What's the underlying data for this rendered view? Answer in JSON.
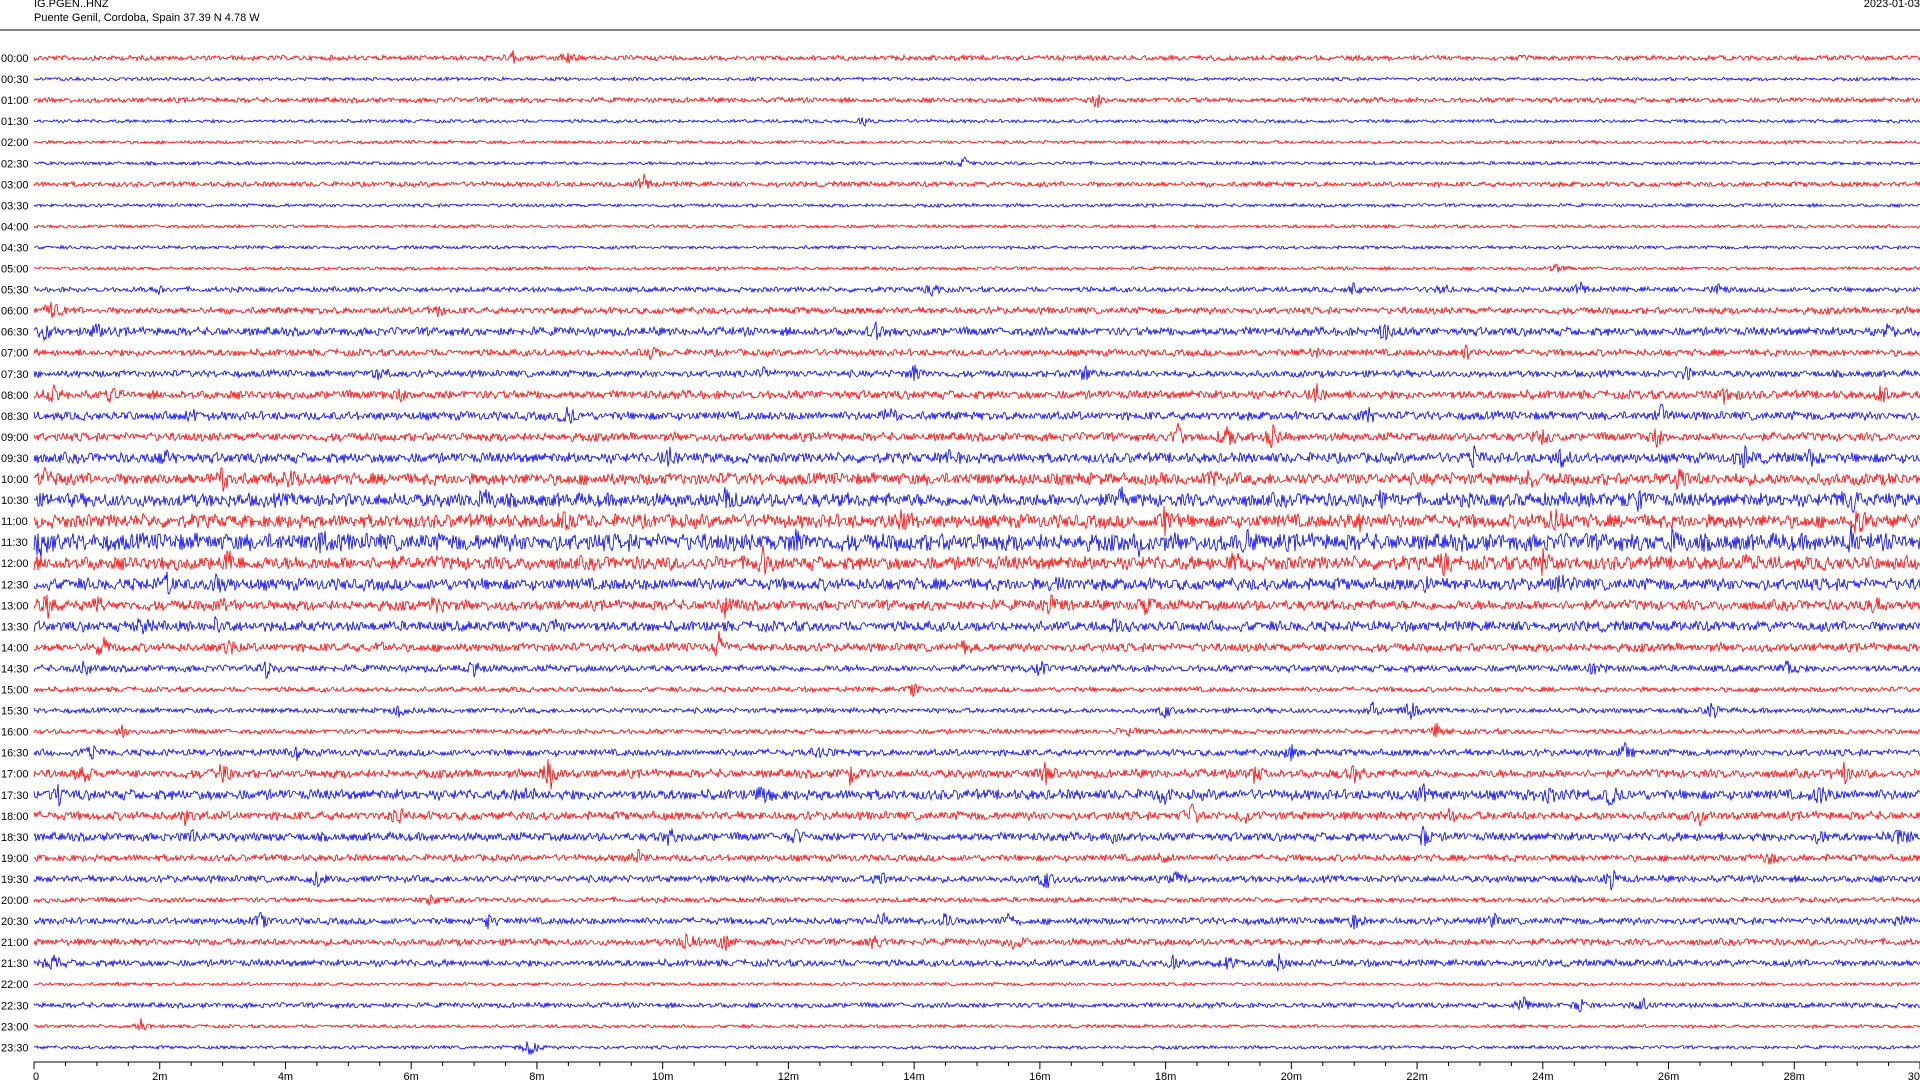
{
  "header": {
    "station": "IG.PGEN..HNZ",
    "location": "Puente Genil, Cordoba, Spain  37.39 N 4.78 W",
    "date": "2023-01-03"
  },
  "colors": {
    "even_row": "#ff0000",
    "odd_row": "#0000ff",
    "axis": "#000000"
  },
  "chart_data": {
    "type": "line",
    "title": "",
    "xlabel": "",
    "ylabel": "",
    "x_unit": "minutes",
    "xlim": [
      0,
      30
    ],
    "x_ticks": [
      "0",
      "2m",
      "4m",
      "6m",
      "8m",
      "10m",
      "12m",
      "14m",
      "16m",
      "18m",
      "20m",
      "22m",
      "24m",
      "26m",
      "28m",
      "30"
    ],
    "minor_ticks_per_minute": 2,
    "rows": [
      {
        "label": "00:00",
        "amp": 3,
        "events": [
          [
            7.6,
            10
          ],
          [
            8.5,
            8
          ]
        ]
      },
      {
        "label": "00:30",
        "amp": 2,
        "events": []
      },
      {
        "label": "01:00",
        "amp": 3,
        "events": [
          [
            16.9,
            9
          ]
        ]
      },
      {
        "label": "01:30",
        "amp": 2,
        "events": [
          [
            13.2,
            5
          ]
        ]
      },
      {
        "label": "02:00",
        "amp": 2,
        "events": []
      },
      {
        "label": "02:30",
        "amp": 2,
        "events": [
          [
            14.8,
            6
          ]
        ]
      },
      {
        "label": "03:00",
        "amp": 3,
        "events": [
          [
            9.7,
            12
          ]
        ]
      },
      {
        "label": "03:30",
        "amp": 2,
        "events": []
      },
      {
        "label": "04:00",
        "amp": 2,
        "events": []
      },
      {
        "label": "04:30",
        "amp": 2,
        "events": []
      },
      {
        "label": "05:00",
        "amp": 2,
        "events": [
          [
            24.2,
            6
          ]
        ]
      },
      {
        "label": "05:30",
        "amp": 3,
        "events": [
          [
            2.0,
            6
          ],
          [
            14.3,
            7
          ],
          [
            21.0,
            7
          ],
          [
            22.4,
            7
          ],
          [
            24.6,
            9
          ],
          [
            26.8,
            8
          ]
        ]
      },
      {
        "label": "06:00",
        "amp": 4,
        "events": [
          [
            0.3,
            12
          ],
          [
            6.4,
            8
          ]
        ]
      },
      {
        "label": "06:30",
        "amp": 5,
        "events": [
          [
            0.2,
            10
          ],
          [
            1.0,
            9
          ],
          [
            13.4,
            10
          ],
          [
            21.5,
            9
          ],
          [
            29.5,
            9
          ]
        ]
      },
      {
        "label": "07:00",
        "amp": 4,
        "events": [
          [
            9.8,
            8
          ],
          [
            20.4,
            7
          ],
          [
            22.8,
            9
          ]
        ]
      },
      {
        "label": "07:30",
        "amp": 4,
        "events": [
          [
            5.5,
            10
          ],
          [
            11.6,
            9
          ],
          [
            14.0,
            10
          ],
          [
            16.7,
            11
          ],
          [
            26.3,
            8
          ]
        ]
      },
      {
        "label": "08:00",
        "amp": 5,
        "events": [
          [
            0.3,
            9
          ],
          [
            1.2,
            8
          ],
          [
            5.8,
            7
          ],
          [
            20.4,
            10
          ],
          [
            26.9,
            10
          ],
          [
            29.4,
            9
          ]
        ]
      },
      {
        "label": "08:30",
        "amp": 5,
        "events": [
          [
            2.5,
            9
          ],
          [
            8.5,
            12
          ],
          [
            13.6,
            10
          ],
          [
            21.2,
            9
          ],
          [
            25.9,
            12
          ]
        ]
      },
      {
        "label": "09:00",
        "amp": 5,
        "events": [
          [
            18.2,
            14
          ],
          [
            19.0,
            16
          ],
          [
            19.7,
            11
          ],
          [
            24.0,
            9
          ],
          [
            25.8,
            12
          ]
        ]
      },
      {
        "label": "09:30",
        "amp": 6,
        "events": [
          [
            2.1,
            9
          ],
          [
            10.1,
            10
          ],
          [
            14.5,
            8
          ],
          [
            22.9,
            10
          ],
          [
            24.3,
            9
          ],
          [
            27.2,
            13
          ],
          [
            28.3,
            12
          ]
        ]
      },
      {
        "label": "10:00",
        "amp": 7,
        "events": [
          [
            0.2,
            12
          ],
          [
            3.0,
            12
          ],
          [
            4.1,
            10
          ],
          [
            18.7,
            11
          ],
          [
            23.8,
            10
          ],
          [
            26.2,
            12
          ]
        ]
      },
      {
        "label": "10:30",
        "amp": 8,
        "events": [
          [
            7.2,
            11
          ],
          [
            11.0,
            10
          ],
          [
            17.3,
            12
          ],
          [
            21.4,
            11
          ],
          [
            25.5,
            10
          ],
          [
            28.9,
            11
          ]
        ]
      },
      {
        "label": "11:00",
        "amp": 8,
        "events": [
          [
            8.5,
            11
          ],
          [
            13.8,
            12
          ],
          [
            18.0,
            13
          ],
          [
            21.1,
            12
          ],
          [
            24.2,
            14
          ],
          [
            29.0,
            12
          ]
        ]
      },
      {
        "label": "11:30",
        "amp": 10,
        "events": [
          [
            0.1,
            12
          ],
          [
            4.6,
            11
          ],
          [
            12.1,
            10
          ],
          [
            17.6,
            12
          ],
          [
            19.3,
            11
          ],
          [
            26.1,
            11
          ],
          [
            28.9,
            11
          ]
        ]
      },
      {
        "label": "12:00",
        "amp": 8,
        "events": [
          [
            3.1,
            13
          ],
          [
            11.6,
            14
          ],
          [
            19.1,
            10
          ],
          [
            22.4,
            10
          ],
          [
            24.0,
            14
          ],
          [
            27.2,
            9
          ]
        ]
      },
      {
        "label": "12:30",
        "amp": 7,
        "events": [
          [
            2.1,
            12
          ],
          [
            2.9,
            9
          ],
          [
            16.3,
            10
          ],
          [
            22.1,
            9
          ],
          [
            24.3,
            8
          ]
        ]
      },
      {
        "label": "13:00",
        "amp": 6,
        "events": [
          [
            0.2,
            12
          ],
          [
            1.0,
            10
          ],
          [
            3.0,
            10
          ],
          [
            6.4,
            10
          ],
          [
            11.0,
            14
          ],
          [
            16.2,
            11
          ],
          [
            17.7,
            10
          ],
          [
            29.3,
            9
          ]
        ]
      },
      {
        "label": "13:30",
        "amp": 6,
        "events": [
          [
            1.7,
            9
          ],
          [
            2.9,
            8
          ],
          [
            8.3,
            8
          ],
          [
            17.2,
            8
          ]
        ]
      },
      {
        "label": "14:00",
        "amp": 5,
        "events": [
          [
            1.1,
            12
          ],
          [
            3.1,
            9
          ],
          [
            5.5,
            9
          ],
          [
            10.9,
            14
          ],
          [
            14.8,
            7
          ]
        ]
      },
      {
        "label": "14:30",
        "amp": 4,
        "events": [
          [
            0.8,
            11
          ],
          [
            3.7,
            10
          ],
          [
            7.0,
            8
          ],
          [
            16.0,
            8
          ],
          [
            24.8,
            8
          ],
          [
            27.9,
            9
          ]
        ]
      },
      {
        "label": "15:00",
        "amp": 3,
        "events": [
          [
            14.0,
            7
          ]
        ]
      },
      {
        "label": "15:30",
        "amp": 3,
        "events": [
          [
            5.8,
            9
          ],
          [
            18.0,
            9
          ],
          [
            21.3,
            10
          ],
          [
            21.9,
            12
          ],
          [
            26.7,
            10
          ]
        ]
      },
      {
        "label": "16:00",
        "amp": 3,
        "events": [
          [
            1.4,
            8
          ],
          [
            17.4,
            8
          ],
          [
            22.3,
            9
          ]
        ]
      },
      {
        "label": "16:30",
        "amp": 4,
        "events": [
          [
            0.9,
            9
          ],
          [
            4.2,
            8
          ],
          [
            12.5,
            8
          ],
          [
            20.0,
            9
          ],
          [
            25.3,
            8
          ]
        ]
      },
      {
        "label": "17:00",
        "amp": 5,
        "events": [
          [
            0.8,
            9
          ],
          [
            3.0,
            11
          ],
          [
            8.2,
            18
          ],
          [
            13.0,
            14
          ],
          [
            16.1,
            10
          ],
          [
            19.4,
            11
          ],
          [
            21.0,
            11
          ],
          [
            28.8,
            10
          ]
        ]
      },
      {
        "label": "17:30",
        "amp": 6,
        "events": [
          [
            0.4,
            11
          ],
          [
            7.8,
            12
          ],
          [
            11.6,
            9
          ],
          [
            18.0,
            11
          ],
          [
            22.1,
            10
          ],
          [
            24.1,
            12
          ],
          [
            25.1,
            13
          ],
          [
            28.4,
            11
          ]
        ]
      },
      {
        "label": "18:00",
        "amp": 5,
        "events": [
          [
            2.4,
            9
          ],
          [
            5.8,
            8
          ],
          [
            18.4,
            16
          ],
          [
            19.3,
            9
          ],
          [
            22.5,
            10
          ],
          [
            26.5,
            8
          ]
        ]
      },
      {
        "label": "18:30",
        "amp": 5,
        "events": [
          [
            2.5,
            10
          ],
          [
            10.1,
            10
          ],
          [
            12.1,
            10
          ],
          [
            17.2,
            8
          ],
          [
            22.1,
            12
          ],
          [
            28.4,
            9
          ],
          [
            29.7,
            12
          ]
        ]
      },
      {
        "label": "19:00",
        "amp": 4,
        "events": [
          [
            9.6,
            9
          ],
          [
            17.9,
            10
          ],
          [
            27.6,
            9
          ]
        ]
      },
      {
        "label": "19:30",
        "amp": 4,
        "events": [
          [
            4.5,
            9
          ],
          [
            13.5,
            8
          ],
          [
            16.1,
            12
          ],
          [
            18.2,
            9
          ],
          [
            25.1,
            11
          ]
        ]
      },
      {
        "label": "20:00",
        "amp": 3,
        "events": [
          [
            6.3,
            9
          ]
        ]
      },
      {
        "label": "20:30",
        "amp": 4,
        "events": [
          [
            3.6,
            9
          ],
          [
            7.2,
            8
          ],
          [
            13.5,
            8
          ],
          [
            14.5,
            9
          ],
          [
            15.5,
            9
          ],
          [
            21.0,
            9
          ],
          [
            23.2,
            8
          ],
          [
            29.7,
            9
          ]
        ]
      },
      {
        "label": "21:00",
        "amp": 4,
        "events": [
          [
            10.4,
            14
          ],
          [
            11.0,
            12
          ],
          [
            13.4,
            10
          ],
          [
            15.6,
            11
          ]
        ]
      },
      {
        "label": "21:30",
        "amp": 4,
        "events": [
          [
            0.3,
            12
          ],
          [
            18.1,
            8
          ],
          [
            19.0,
            9
          ],
          [
            19.8,
            10
          ]
        ]
      },
      {
        "label": "22:00",
        "amp": 2,
        "events": []
      },
      {
        "label": "22:30",
        "amp": 3,
        "events": [
          [
            23.7,
            9
          ],
          [
            24.6,
            8
          ],
          [
            25.6,
            9
          ]
        ]
      },
      {
        "label": "23:00",
        "amp": 2,
        "events": [
          [
            1.7,
            7
          ]
        ]
      },
      {
        "label": "23:30",
        "amp": 2,
        "events": [
          [
            7.9,
            12
          ]
        ]
      }
    ]
  }
}
